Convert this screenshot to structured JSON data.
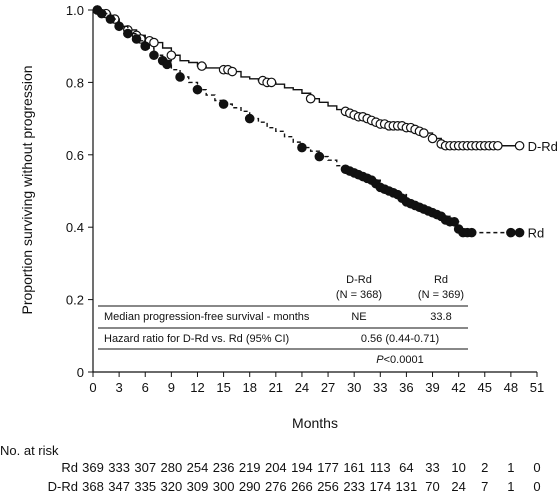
{
  "chart_data": {
    "type": "line",
    "subtype": "kaplan-meier",
    "xlabel": "Months",
    "ylabel": "Proportion surviving without progression",
    "xlim": [
      0,
      51
    ],
    "ylim": [
      0,
      1.0
    ],
    "x_ticks": [
      "0",
      "3",
      "6",
      "9",
      "12",
      "15",
      "18",
      "21",
      "24",
      "27",
      "30",
      "33",
      "36",
      "39",
      "42",
      "45",
      "48",
      "51"
    ],
    "y_ticks": [
      "0",
      "0.2",
      "0.4",
      "0.6",
      "0.8",
      "1.0"
    ],
    "grid": false,
    "series": [
      {
        "name": "D-Rd",
        "color": "#111111",
        "line_style": "solid",
        "marker": "open-circle",
        "points": [
          [
            0,
            1.0
          ],
          [
            1,
            0.99
          ],
          [
            2,
            0.975
          ],
          [
            3,
            0.955
          ],
          [
            4,
            0.945
          ],
          [
            5,
            0.93
          ],
          [
            6,
            0.92
          ],
          [
            7,
            0.91
          ],
          [
            8,
            0.895
          ],
          [
            9,
            0.875
          ],
          [
            10,
            0.86
          ],
          [
            11,
            0.855
          ],
          [
            12,
            0.845
          ],
          [
            13,
            0.84
          ],
          [
            14,
            0.84
          ],
          [
            15,
            0.835
          ],
          [
            16,
            0.83
          ],
          [
            17,
            0.815
          ],
          [
            18,
            0.81
          ],
          [
            19,
            0.805
          ],
          [
            20,
            0.8
          ],
          [
            21,
            0.795
          ],
          [
            22,
            0.785
          ],
          [
            23,
            0.78
          ],
          [
            24,
            0.77
          ],
          [
            25,
            0.755
          ],
          [
            26,
            0.745
          ],
          [
            27,
            0.735
          ],
          [
            28,
            0.725
          ],
          [
            29,
            0.72
          ],
          [
            30,
            0.71
          ],
          [
            31,
            0.705
          ],
          [
            32,
            0.695
          ],
          [
            33,
            0.685
          ],
          [
            34,
            0.68
          ],
          [
            35,
            0.68
          ],
          [
            36,
            0.675
          ],
          [
            37,
            0.67
          ],
          [
            38,
            0.66
          ],
          [
            39,
            0.645
          ],
          [
            40,
            0.63
          ],
          [
            41,
            0.625
          ],
          [
            43,
            0.625
          ],
          [
            46,
            0.625
          ],
          [
            48,
            0.625
          ],
          [
            49,
            0.625
          ]
        ],
        "censor_marks": [
          [
            0.5,
            1.0
          ],
          [
            1.5,
            0.99
          ],
          [
            2.5,
            0.975
          ],
          [
            4,
            0.945
          ],
          [
            5,
            0.93
          ],
          [
            5.5,
            0.92
          ],
          [
            6.5,
            0.915
          ],
          [
            7,
            0.91
          ],
          [
            9,
            0.875
          ],
          [
            12.5,
            0.845
          ],
          [
            15,
            0.835
          ],
          [
            15.5,
            0.835
          ],
          [
            16,
            0.83
          ],
          [
            19.5,
            0.805
          ],
          [
            20,
            0.8
          ],
          [
            20.5,
            0.8
          ],
          [
            25,
            0.755
          ],
          [
            29,
            0.72
          ],
          [
            29.5,
            0.715
          ],
          [
            30,
            0.71
          ],
          [
            30.5,
            0.705
          ],
          [
            31,
            0.705
          ],
          [
            31.5,
            0.7
          ],
          [
            32,
            0.695
          ],
          [
            32.5,
            0.69
          ],
          [
            33,
            0.685
          ],
          [
            33.5,
            0.685
          ],
          [
            34,
            0.68
          ],
          [
            34.5,
            0.68
          ],
          [
            35,
            0.68
          ],
          [
            35.5,
            0.68
          ],
          [
            36,
            0.675
          ],
          [
            36.5,
            0.675
          ],
          [
            37,
            0.67
          ],
          [
            37.5,
            0.665
          ],
          [
            38,
            0.66
          ],
          [
            39,
            0.645
          ],
          [
            40,
            0.63
          ],
          [
            40.5,
            0.625
          ],
          [
            41,
            0.625
          ],
          [
            41.5,
            0.625
          ],
          [
            42,
            0.625
          ],
          [
            42.5,
            0.625
          ],
          [
            43,
            0.625
          ],
          [
            43.5,
            0.625
          ],
          [
            44,
            0.625
          ],
          [
            44.5,
            0.625
          ],
          [
            45,
            0.625
          ],
          [
            45.5,
            0.625
          ],
          [
            46,
            0.625
          ],
          [
            46.5,
            0.625
          ],
          [
            49,
            0.625
          ]
        ],
        "end_label": "D-Rd"
      },
      {
        "name": "Rd",
        "color": "#111111",
        "line_style": "dashed",
        "marker": "filled-circle",
        "points": [
          [
            0,
            1.0
          ],
          [
            1,
            0.99
          ],
          [
            2,
            0.975
          ],
          [
            3,
            0.955
          ],
          [
            4,
            0.935
          ],
          [
            5,
            0.915
          ],
          [
            6,
            0.895
          ],
          [
            7,
            0.875
          ],
          [
            8,
            0.86
          ],
          [
            9,
            0.835
          ],
          [
            10,
            0.815
          ],
          [
            11,
            0.8
          ],
          [
            12,
            0.78
          ],
          [
            13,
            0.765
          ],
          [
            14,
            0.75
          ],
          [
            15,
            0.74
          ],
          [
            16,
            0.73
          ],
          [
            17,
            0.72
          ],
          [
            18,
            0.7
          ],
          [
            19,
            0.69
          ],
          [
            20,
            0.675
          ],
          [
            21,
            0.665
          ],
          [
            22,
            0.65
          ],
          [
            23,
            0.635
          ],
          [
            24,
            0.62
          ],
          [
            25,
            0.61
          ],
          [
            26,
            0.595
          ],
          [
            27,
            0.585
          ],
          [
            28,
            0.57
          ],
          [
            29,
            0.56
          ],
          [
            30,
            0.55
          ],
          [
            31,
            0.54
          ],
          [
            32,
            0.53
          ],
          [
            33,
            0.51
          ],
          [
            34,
            0.5
          ],
          [
            35,
            0.49
          ],
          [
            36,
            0.47
          ],
          [
            37,
            0.46
          ],
          [
            38,
            0.45
          ],
          [
            39,
            0.44
          ],
          [
            40,
            0.43
          ],
          [
            41,
            0.415
          ],
          [
            42,
            0.395
          ],
          [
            43,
            0.385
          ],
          [
            44,
            0.385
          ],
          [
            48,
            0.385
          ],
          [
            49,
            0.385
          ]
        ],
        "censor_marks": [
          [
            0.5,
            1.0
          ],
          [
            1,
            0.99
          ],
          [
            2,
            0.975
          ],
          [
            3,
            0.955
          ],
          [
            4,
            0.935
          ],
          [
            5,
            0.92
          ],
          [
            6,
            0.9
          ],
          [
            7,
            0.875
          ],
          [
            8,
            0.86
          ],
          [
            8.5,
            0.85
          ],
          [
            10,
            0.815
          ],
          [
            12,
            0.78
          ],
          [
            15,
            0.74
          ],
          [
            18,
            0.7
          ],
          [
            24,
            0.62
          ],
          [
            26,
            0.595
          ],
          [
            29,
            0.56
          ],
          [
            29.5,
            0.555
          ],
          [
            30,
            0.55
          ],
          [
            30.5,
            0.545
          ],
          [
            31,
            0.54
          ],
          [
            31.5,
            0.535
          ],
          [
            32,
            0.53
          ],
          [
            32.5,
            0.52
          ],
          [
            33,
            0.51
          ],
          [
            33.5,
            0.505
          ],
          [
            34,
            0.5
          ],
          [
            34.5,
            0.495
          ],
          [
            35,
            0.49
          ],
          [
            35.5,
            0.48
          ],
          [
            36,
            0.47
          ],
          [
            36.5,
            0.465
          ],
          [
            37,
            0.46
          ],
          [
            37.5,
            0.455
          ],
          [
            38,
            0.45
          ],
          [
            38.5,
            0.445
          ],
          [
            39,
            0.44
          ],
          [
            39.5,
            0.435
          ],
          [
            40,
            0.43
          ],
          [
            40.5,
            0.42
          ],
          [
            41,
            0.415
          ],
          [
            41.5,
            0.415
          ],
          [
            42,
            0.395
          ],
          [
            42.5,
            0.385
          ],
          [
            43,
            0.385
          ],
          [
            43.5,
            0.385
          ],
          [
            48,
            0.385
          ],
          [
            49,
            0.385
          ]
        ],
        "end_label": "Rd"
      }
    ],
    "inset_table": {
      "header_drd": "D-Rd",
      "header_drd_n": "(N = 368)",
      "header_rd": "Rd",
      "header_rd_n": "(N = 369)",
      "row1_label": "Median progression-free survival - months",
      "row1_drd": "NE",
      "row1_rd": "33.8",
      "row2_label": "Hazard ratio for D-Rd vs. Rd (95% CI)",
      "row2_value": "0.56 (0.44-0.71)",
      "p_label": "P",
      "p_value": "<0.0001"
    },
    "risk_table": {
      "title": "No. at risk",
      "rows": [
        {
          "label": "Rd",
          "values": [
            "369",
            "333",
            "307",
            "280",
            "254",
            "236",
            "219",
            "204",
            "194",
            "177",
            "161",
            "113",
            "64",
            "33",
            "10",
            "2",
            "1",
            "0"
          ]
        },
        {
          "label": "D-Rd",
          "values": [
            "368",
            "347",
            "335",
            "320",
            "309",
            "300",
            "290",
            "276",
            "266",
            "256",
            "233",
            "174",
            "131",
            "70",
            "24",
            "7",
            "1",
            "0"
          ]
        }
      ]
    }
  }
}
